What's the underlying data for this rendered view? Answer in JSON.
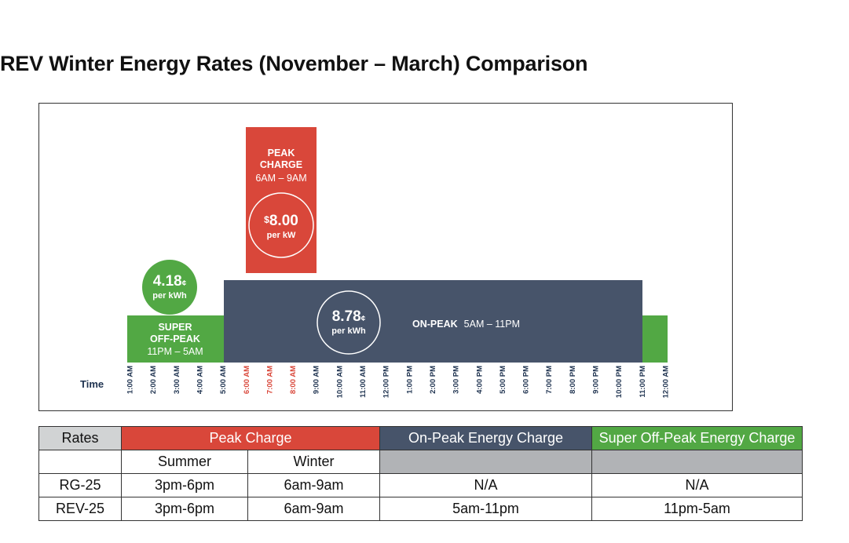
{
  "title": "REV Winter Energy Rates (November – March) Comparison",
  "colors": {
    "peak": "#d9473a",
    "on_peak": "#47546a",
    "super_off_peak": "#52a844",
    "time_label": "#1f3350",
    "peak_hour_label": "#d9473a",
    "rates_header": "#d1d3d4",
    "gray_cell": "#b1b3b6"
  },
  "chart_data": {
    "type": "bar",
    "x_axis_label": "Time",
    "categories": [
      "1:00 AM",
      "2:00 AM",
      "3:00 AM",
      "4:00 AM",
      "5:00 AM",
      "6:00 AM",
      "7:00 AM",
      "8:00 AM",
      "9:00 AM",
      "10:00 AM",
      "11:00 AM",
      "12:00 PM",
      "1:00 PM",
      "2:00 PM",
      "3:00 PM",
      "4:00 PM",
      "5:00 PM",
      "6:00 PM",
      "7:00 PM",
      "8:00 PM",
      "9:00 PM",
      "10:00 PM",
      "11:00 PM",
      "12:00 AM"
    ],
    "highlighted_categories": [
      "6:00 AM",
      "7:00 AM",
      "8:00 AM"
    ],
    "periods": [
      {
        "id": "super_off_peak",
        "label_lines": [
          "SUPER",
          "OFF-PEAK"
        ],
        "hours": "11PM – 5AM",
        "rate_value": "4.18",
        "rate_unit_symbol": "¢",
        "rate_per": "per kWh",
        "rate_cents_per_kwh": 4.18
      },
      {
        "id": "on_peak",
        "label": "ON-PEAK",
        "hours": "5AM – 11PM",
        "rate_value": "8.78",
        "rate_unit_symbol": "¢",
        "rate_per": "per kWh",
        "rate_cents_per_kwh": 8.78
      },
      {
        "id": "peak_charge",
        "label_lines": [
          "PEAK",
          "CHARGE"
        ],
        "hours": "6AM – 9AM",
        "rate_prefix": "$",
        "rate_value": "8.00",
        "rate_per": "per kW",
        "rate_dollars_per_kw": 8.0
      }
    ]
  },
  "table": {
    "headers": {
      "rates": "Rates",
      "peak_charge": "Peak Charge",
      "on_peak": "On-Peak Energy Charge",
      "super_off_peak": "Super Off-Peak Energy Charge"
    },
    "subheaders": {
      "summer": "Summer",
      "winter": "Winter"
    },
    "rows": [
      {
        "name": "RG-25",
        "summer": "3pm-6pm",
        "winter": "6am-9am",
        "on_peak": "N/A",
        "super_off_peak": "N/A"
      },
      {
        "name": "REV-25",
        "summer": "3pm-6pm",
        "winter": "6am-9am",
        "on_peak": "5am-11pm",
        "super_off_peak": "11pm-5am"
      }
    ]
  }
}
